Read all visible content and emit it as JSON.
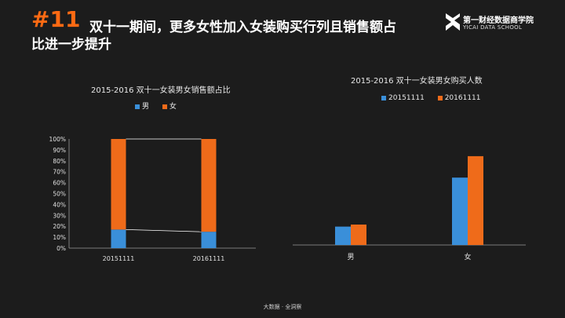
{
  "header": {
    "number": "#11",
    "title_line1": "双十一期间，更多女性加入女装购买行列且销售额占",
    "title_line2": "比进一步提升"
  },
  "logo": {
    "name": "第一财经数据商学院",
    "subtitle": "YICAI DATA SCHOOL",
    "icon": "yicai-logo-icon"
  },
  "colors": {
    "male": "#3a8fd9",
    "female": "#ef6b1a",
    "background": "#1c1c1c",
    "accent": "#ff6a13"
  },
  "chart_data": [
    {
      "type": "bar",
      "stacked": true,
      "percent": true,
      "title": "2015-2016 双十一女装男女销售额占比",
      "categories": [
        "20151111",
        "20161111"
      ],
      "series": [
        {
          "name": "男",
          "values": [
            17,
            15
          ]
        },
        {
          "name": "女",
          "values": [
            83,
            85
          ]
        }
      ],
      "ylim": [
        0,
        100
      ],
      "yticks": [
        "0%",
        "10%",
        "20%",
        "30%",
        "40%",
        "50%",
        "60%",
        "70%",
        "80%",
        "90%",
        "100%"
      ],
      "legend": "top-left",
      "grid": false
    },
    {
      "type": "bar",
      "title": "2015-2016 双十一女装男女购买人数",
      "categories": [
        "男",
        "女"
      ],
      "series": [
        {
          "name": "20151111",
          "values": [
            18,
            66
          ]
        },
        {
          "name": "20161111",
          "values": [
            20,
            87
          ]
        }
      ],
      "ylim": [
        0,
        100
      ],
      "legend": "top-left",
      "grid": false
    }
  ],
  "footer": "大数据 · 全洞察"
}
